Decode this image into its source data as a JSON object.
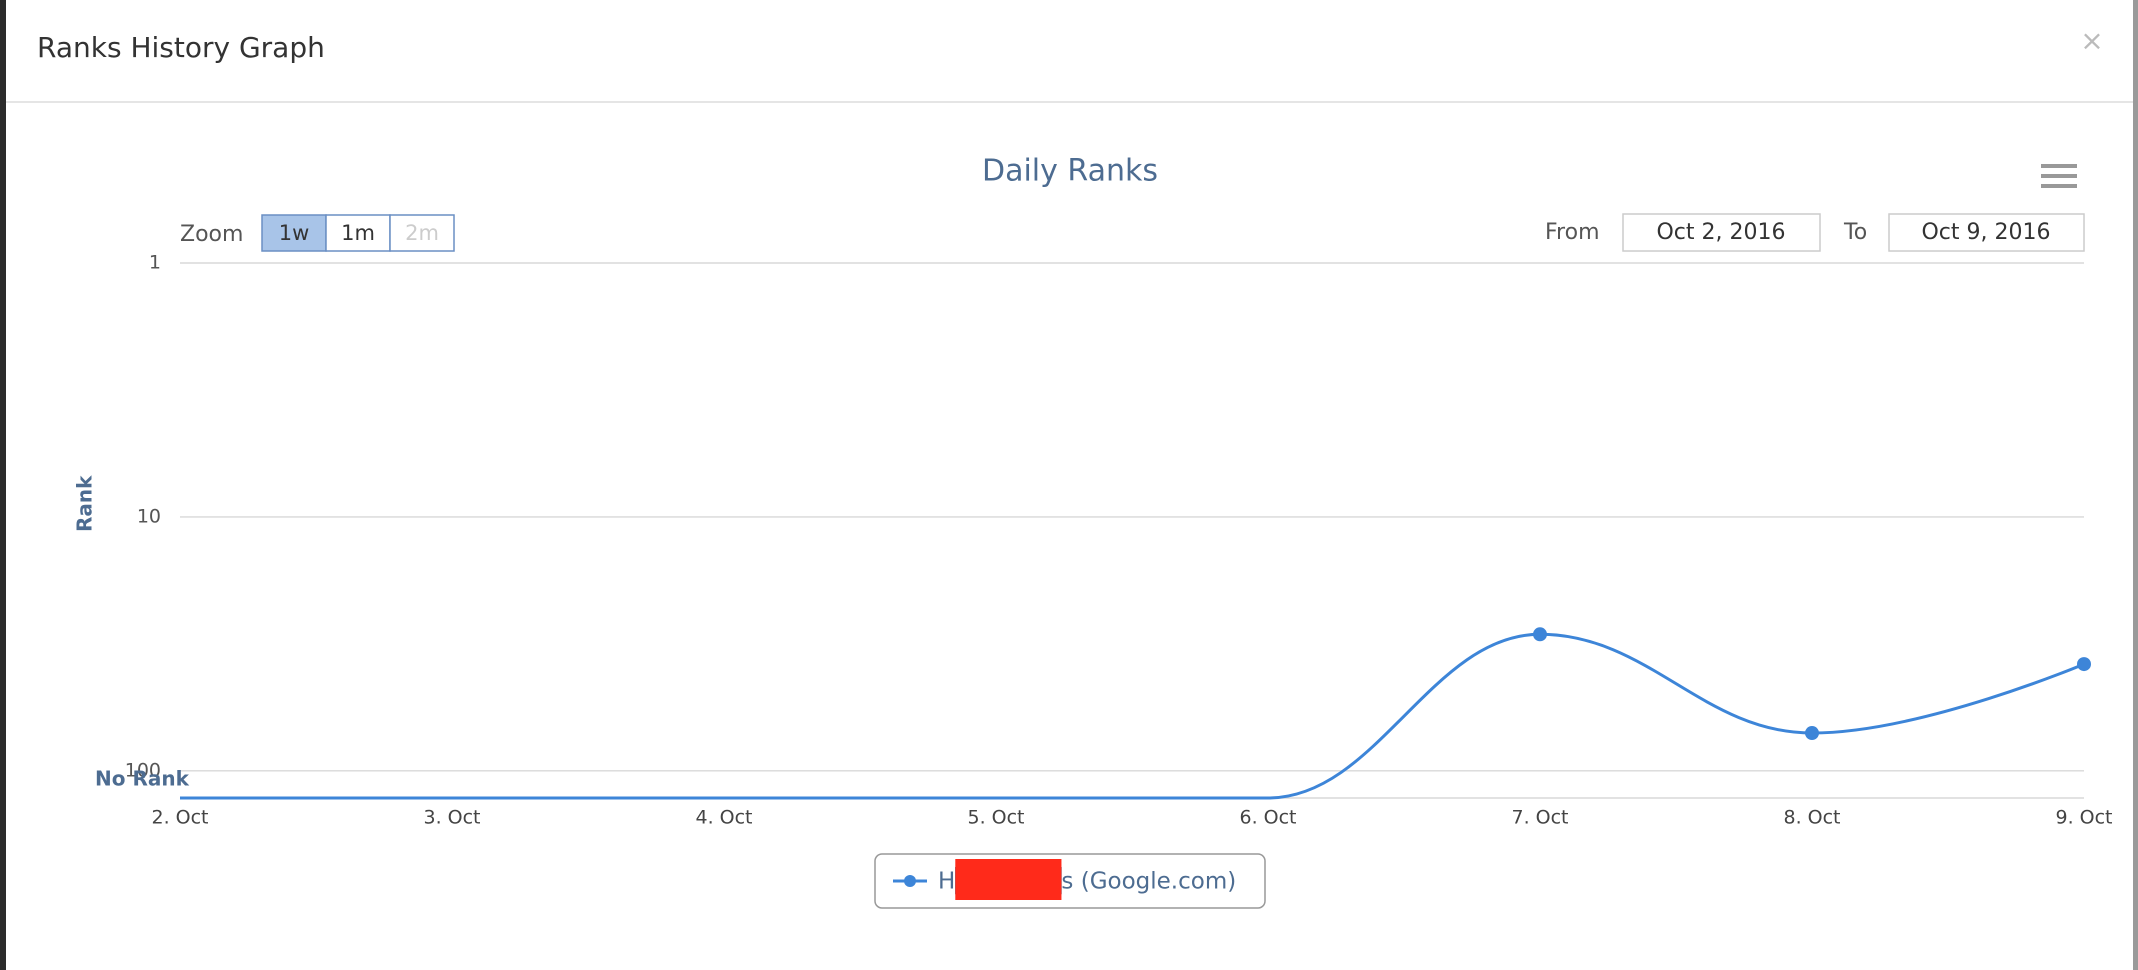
{
  "dialog": {
    "title": "Ranks History Graph",
    "close": "×"
  },
  "chart_data": {
    "type": "line",
    "title": "Daily Ranks",
    "y_label": "Rank",
    "categories": [
      "2. Oct",
      "3. Oct",
      "4. Oct",
      "5. Oct",
      "6. Oct",
      "7. Oct",
      "8. Oct",
      "9. Oct"
    ],
    "series": [
      {
        "name": "H██████s (Google.com)",
        "color": "#3d85d8",
        "values": [
          128,
          128,
          128,
          128,
          128,
          29,
          71,
          38
        ]
      }
    ],
    "ylim": [
      1,
      128
    ],
    "yticks": [
      1,
      10,
      100,
      {
        "value": 128,
        "label": "No Rank"
      }
    ],
    "log_scale": true,
    "y_reversed": true,
    "grid": true,
    "zoom": {
      "label": "Zoom",
      "buttons": [
        "1w",
        "1m",
        "2m"
      ],
      "selected": 0,
      "disabled": 2
    },
    "range": {
      "from_label": "From",
      "from": "Oct 2, 2016",
      "to_label": "To",
      "to": "Oct 9, 2016"
    }
  }
}
